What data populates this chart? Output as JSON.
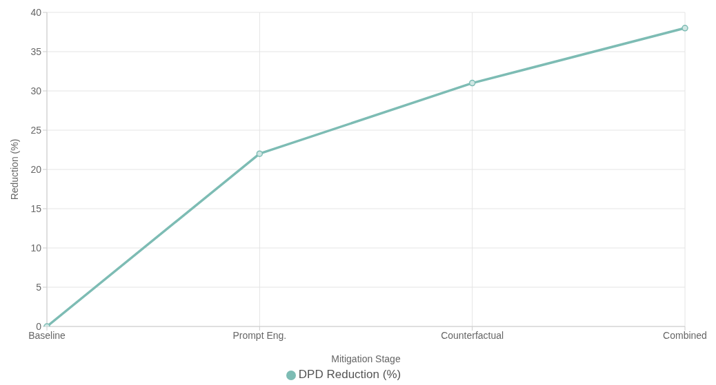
{
  "chart_data": {
    "type": "line",
    "xlabel": "Mitigation Stage",
    "ylabel": "Reduction (%)",
    "categories": [
      "Baseline",
      "Prompt Eng.",
      "Counterfactual",
      "Combined"
    ],
    "series": [
      {
        "name": "DPD Reduction (%)",
        "color": "#7dbcb4",
        "values": [
          0,
          22,
          31,
          38
        ]
      }
    ],
    "ylim": [
      0,
      40
    ],
    "yticks": [
      0,
      5,
      10,
      15,
      20,
      25,
      30,
      35,
      40
    ],
    "grid": true,
    "legend": "bottom",
    "marker": "circle",
    "line_style": "solid"
  }
}
